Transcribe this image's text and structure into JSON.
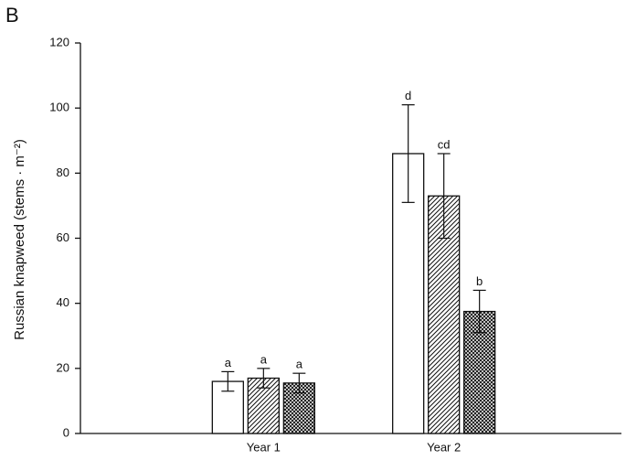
{
  "panel": "B",
  "chart_data": {
    "type": "bar",
    "ylabel": "Russian knapweed (stems · m⁻²)",
    "categories": [
      "Year 1",
      "Year 2"
    ],
    "series": [
      {
        "color": "#ffffff",
        "pattern": "none",
        "values": [
          16,
          86
        ],
        "errors": [
          3,
          15
        ],
        "letters": [
          "a",
          "d"
        ]
      },
      {
        "color": "#ffffff",
        "pattern": "diagonal",
        "values": [
          17,
          73
        ],
        "errors": [
          3,
          13
        ],
        "letters": [
          "a",
          "cd"
        ]
      },
      {
        "color": "#ffffff",
        "pattern": "crosshatch",
        "values": [
          15.5,
          37.5
        ],
        "errors": [
          3,
          6.5
        ],
        "letters": [
          "a",
          "b"
        ]
      }
    ],
    "ylim": [
      0,
      120
    ],
    "yticks": [
      0,
      20,
      40,
      60,
      80,
      100,
      120
    ]
  }
}
